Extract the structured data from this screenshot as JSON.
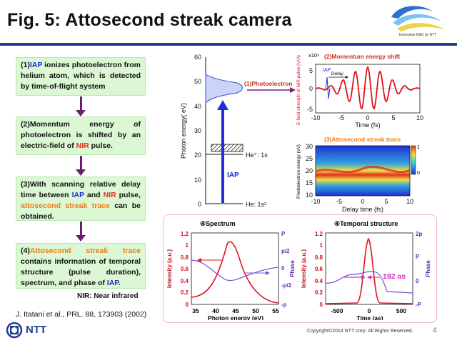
{
  "title": "Fig. 5: Attosecond streak camera",
  "logo": {
    "caption": "Innovative R&D by NTT"
  },
  "steps": [
    {
      "num": "(1)",
      "parts": [
        [
          "IAP",
          "blue"
        ],
        [
          " ionizes photoelectron from helium atom, which is detected by time-of-flight system",
          ""
        ]
      ]
    },
    {
      "num": "(2)",
      "parts": [
        [
          "Momentum energy of ",
          ""
        ],
        [
          "photoelectron",
          ""
        ],
        [
          " is shifted by an electric-field of ",
          ""
        ],
        [
          "NIR",
          "red"
        ],
        [
          " pulse.",
          ""
        ]
      ]
    },
    {
      "num": "(3)",
      "parts": [
        [
          "With scanning relative delay time between ",
          ""
        ],
        [
          "IAP",
          "blue"
        ],
        [
          " and ",
          ""
        ],
        [
          "NIR",
          "red"
        ],
        [
          " pulse, ",
          ""
        ],
        [
          "attosecond streak trace",
          "orange"
        ],
        [
          " can be obtained.",
          ""
        ]
      ]
    },
    {
      "num": "(4)",
      "parts": [
        [
          "Attosecond streak trace",
          "orange"
        ],
        [
          " contains information of temporal structure (pulse duration), spectrum, and phase of ",
          ""
        ],
        [
          "IAP",
          "blue"
        ],
        [
          ".",
          ""
        ]
      ]
    }
  ],
  "nir_note": "NIR: Near infrared",
  "reference": "J. Itatani et al., PRL. 88, 173903 (2002)",
  "ntt_label": "NTT",
  "copyright": "Copyright©2014 NTT corp. All Rights Reserved.",
  "page_number": "4",
  "energy_diagram": {
    "ylabel": "Photon energy( eV)",
    "ticks": [
      "0",
      "10",
      "20",
      "30",
      "40",
      "50",
      "60"
    ],
    "he_plus": "He⁺: 1s",
    "he": "He: 1s²",
    "iap_label": "IAP",
    "photoelectron_label": "(1)Photoelectron"
  },
  "momentum_panel": {
    "title": "(2)Momentum energy shift",
    "ylabel": "E-field strength of NIR pulse (V/A)",
    "xlabel": "Time (fs)",
    "exp": "x10⁹",
    "yticks": [
      "5",
      "0",
      "-5"
    ],
    "xticks": [
      "-10",
      "-5",
      "0",
      "5",
      "10"
    ],
    "iap": "IAP",
    "delay": "Delay"
  },
  "streak_panel": {
    "title": "(3)Attosecond streak trace",
    "ylabel": "Photoelectron energy (eV)",
    "xlabel": "Delay time (fs)",
    "yticks": [
      "30",
      "25",
      "20",
      "15",
      "10"
    ],
    "xticks": [
      "-10",
      "-5",
      "0",
      "5",
      "10"
    ],
    "cbar": [
      "1",
      "0"
    ]
  },
  "spectrum_panel": {
    "title": "④Spectrum",
    "ylabel": "Intensity (a.u.)",
    "y2label": "Phase",
    "xlabel": "Photon energy (eV)",
    "yticks": [
      "1.2",
      "1",
      "0.8",
      "0.6",
      "0.4",
      "0.2",
      "0"
    ],
    "y2ticks": [
      "P",
      "p/2",
      "0",
      "-p/2",
      "-p"
    ],
    "xticks": [
      "35",
      "40",
      "45",
      "50",
      "55"
    ]
  },
  "temporal_panel": {
    "title": "④Temporal structure",
    "ylabel": "Intensity (a.u.)",
    "y2label": "Phase",
    "xlabel": "Time (as)",
    "yticks": [
      "1.2",
      "1",
      "0.8",
      "0.6",
      "0.4",
      "0.2",
      "0"
    ],
    "y2ticks": [
      "2p",
      "P",
      "0",
      "-P"
    ],
    "xticks": [
      "-500",
      "0",
      "500"
    ],
    "fwhm": "192 as"
  },
  "colors": {
    "accent": "#1f3f8f",
    "step_bg": "#dcf7d4",
    "arrow": "#6a1f73",
    "red": "#e0301e",
    "blue": "#1e2fd4",
    "purple": "#7a4fd0"
  }
}
